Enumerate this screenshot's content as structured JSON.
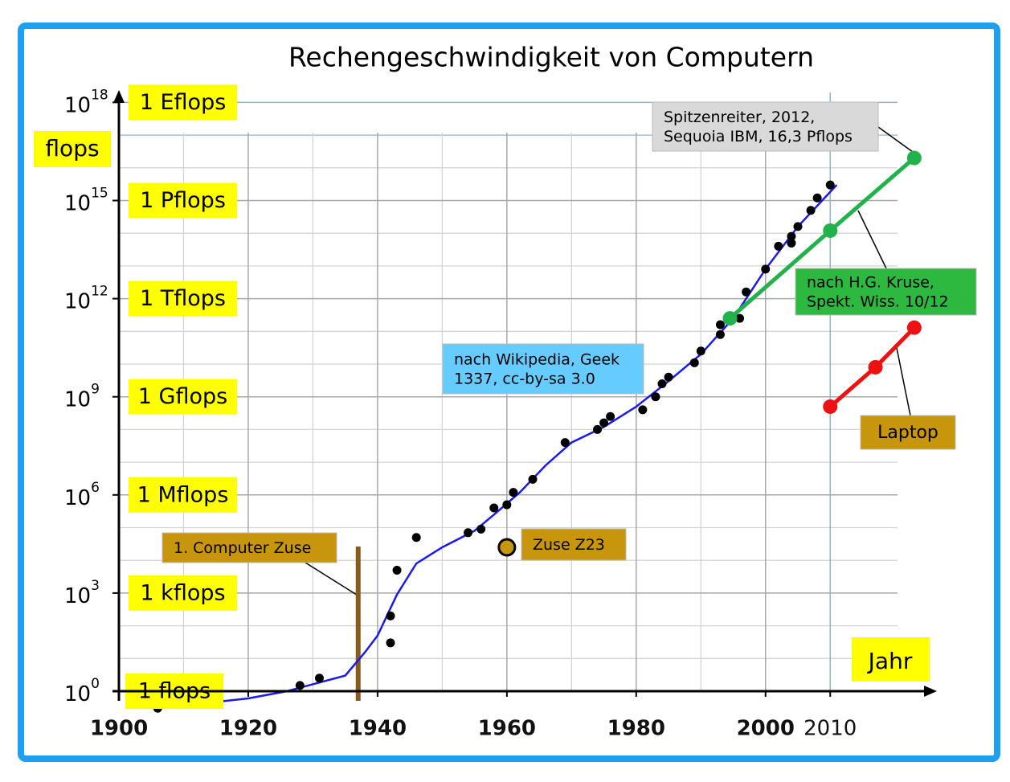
{
  "chart_data": {
    "type": "scatter",
    "title": "Rechengeschwindigkeit  von Computern",
    "x_label": "Jahr",
    "y_label": "flops",
    "log_scale_y": true,
    "grid": true,
    "xlim": [
      1900,
      2026
    ],
    "ylim": [
      0.1,
      1e+19
    ],
    "xticks": [
      1900,
      1920,
      1940,
      1960,
      1980,
      2000,
      2010
    ],
    "xminor": [
      1910,
      1930,
      1950,
      1970,
      1990
    ],
    "yticks": [
      {
        "value": 1,
        "label": "10",
        "exp": "0",
        "unit": "1 flops"
      },
      {
        "value": 1000.0,
        "label": "10",
        "exp": "3",
        "unit": "1 kflops"
      },
      {
        "value": 1000000.0,
        "label": "10",
        "exp": "6",
        "unit": "1 Mflops"
      },
      {
        "value": 1000000000.0,
        "label": "10",
        "exp": "9",
        "unit": "1 Gflops"
      },
      {
        "value": 1000000000000.0,
        "label": "10",
        "exp": "12",
        "unit": "1 Tflops"
      },
      {
        "value": 1000000000000000.0,
        "label": "10",
        "exp": "15",
        "unit": "1 Pflops"
      },
      {
        "value": 1e+18,
        "label": "10",
        "exp": "18",
        "unit": "1 Eflops"
      }
    ],
    "yminor": [
      10,
      100,
      10000.0,
      100000.0,
      10000000.0,
      100000000.0,
      10000000000.0,
      100000000000.0,
      10000000000000.0,
      100000000000000.0,
      1e+16,
      1e+17
    ],
    "series": [
      {
        "type": "line",
        "color": "#1a1aee",
        "x": [
          1906,
          1920,
          1926,
          1935,
          1938,
          1940,
          1943,
          1946,
          1950,
          1955,
          1958,
          1962,
          1966,
          1970,
          1975,
          1980,
          1985,
          1990,
          1995,
          2000,
          2005,
          2011
        ],
        "values": [
          0.3,
          0.6,
          1,
          3,
          15,
          50,
          900,
          8000,
          25000,
          80000,
          250000,
          1200000.0,
          8000000.0,
          40000000.0,
          120000000.0,
          500000000.0,
          3000000000.0,
          20000000000.0,
          250000000000.0,
          8000000000000.0,
          160000000000000.0,
          3000000000000000.0
        ]
      },
      {
        "type": "scatter",
        "color": "#000000",
        "x": [
          1906,
          1928,
          1931,
          1942,
          1942,
          1943,
          1946,
          1954,
          1956,
          1958,
          1960,
          1961,
          1964,
          1969,
          1974,
          1975,
          1976,
          1981,
          1983,
          1984,
          1985,
          1989,
          1990,
          1993,
          1993,
          1996,
          1997,
          2000,
          2002,
          2004,
          2004,
          2005,
          2007,
          2008,
          2010
        ],
        "values": [
          0.3,
          1.5,
          2.5,
          30,
          200,
          5000,
          50000,
          70000,
          90000,
          400000,
          500000,
          1200000.0,
          3000000.0,
          40000000.0,
          100000000.0,
          160000000.0,
          250000000.0,
          400000000.0,
          1000000000.0,
          2500000000.0,
          4000000000.0,
          11000000000.0,
          25000000000.0,
          80000000000.0,
          160000000000.0,
          250000000000.0,
          1600000000000.0,
          8000000000000.0,
          40000000000000.0,
          50000000000000.0,
          80000000000000.0,
          160000000000000.0,
          500000000000000.0,
          1200000000000000.0,
          3000000000000000.0
        ]
      },
      {
        "type": "line",
        "markers": true,
        "color": "#22b24c",
        "x": [
          1994.5,
          2010,
          2023
        ],
        "values": [
          250000000000.0,
          120000000000000.0,
          2e+16
        ]
      },
      {
        "type": "line",
        "markers": true,
        "color": "#ee1111",
        "x": [
          2010,
          2017,
          2023
        ],
        "values": [
          500000000.0,
          8000000000.0,
          130000000000.0
        ]
      },
      {
        "type": "scatter",
        "big": true,
        "color": "#c8960c",
        "x": [
          1960
        ],
        "values": [
          25000
        ]
      }
    ],
    "annotations": [
      {
        "lines": [
          "Spitzenreiter, 2012,",
          "Sequoia IBM, 16,3 Pflops"
        ]
      },
      {
        "lines": [
          "nach H.G. Kruse,",
          "Spekt. Wiss. 10/12"
        ]
      },
      {
        "lines": [
          "nach Wikipedia, Geek",
          "1337, cc-by-sa 3.0"
        ]
      },
      {
        "lines": [
          "Laptop"
        ]
      },
      {
        "lines": [
          "1. Computer Zuse"
        ],
        "x": 1937
      },
      {
        "lines": [
          "Zuse Z23"
        ]
      }
    ]
  }
}
